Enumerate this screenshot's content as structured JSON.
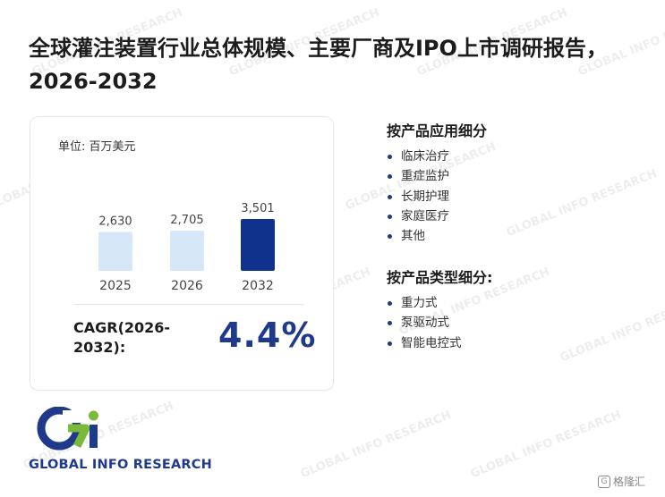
{
  "title": "全球灌注装置行业总体规模、主要厂商及IPO上市调研报告，2026-2032",
  "card": {
    "unit": "单位: 百万美元",
    "cagr_label": "CAGR(2026-2032):",
    "cagr_value": "4.4%"
  },
  "chart_data": {
    "type": "bar",
    "categories": [
      "2025",
      "2026",
      "2032"
    ],
    "values": [
      2630,
      2705,
      3501
    ],
    "value_labels": [
      "2,630",
      "2,705",
      "3,501"
    ],
    "ylabel": "百万美元",
    "colors": [
      "#d6e7f8",
      "#d6e7f8",
      "#10318c"
    ],
    "grid": false
  },
  "sections": [
    {
      "title": "按产品应用细分",
      "items": [
        "临床治疗",
        "重症监护",
        "长期护理",
        "家庭医疗",
        "其他"
      ]
    },
    {
      "title": "按产品类型细分:",
      "items": [
        "重力式",
        "泵驱动式",
        "智能电控式"
      ]
    }
  ],
  "logo": {
    "text": "GLOBAL INFO RESEARCH",
    "colors": [
      "#1f3a8a",
      "#7ab93a"
    ]
  },
  "watermark": {
    "text": "GLOBAL INFO RESEARCH"
  },
  "corner_badge": {
    "text": "格隆汇"
  }
}
